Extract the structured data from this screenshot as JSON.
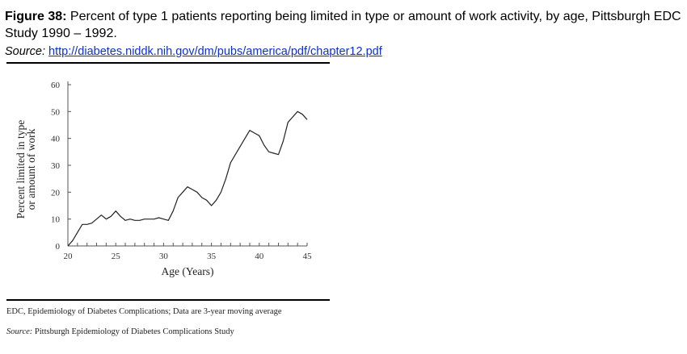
{
  "header": {
    "figure_label": "Figure 38:",
    "title_text": "Percent of type 1 patients reporting being limited in type or amount of work activity, by age, Pittsburgh EDC Study 1990 – 1992.",
    "source_label": "Source:",
    "source_link": "http://diabetes.niddk.nih.gov/dm/pubs/america/pdf/chapter12.pdf"
  },
  "footer": {
    "note": "EDC, Epidemiology of Diabetes Complications; Data are 3-year moving average",
    "source_label": "Source:",
    "source_text": "Pittsburgh Epidemiology of Diabetes Complications Study"
  },
  "colors": {
    "line": "#222222",
    "link": "#0b32c8"
  },
  "chart_data": {
    "type": "line",
    "title": "",
    "xlabel": "Age (Years)",
    "ylabel_line1": "Percent limited in type",
    "ylabel_line2": "or amount of work",
    "xlim": [
      20,
      45
    ],
    "ylim": [
      0,
      60
    ],
    "xticks": [
      20,
      25,
      30,
      35,
      40,
      45
    ],
    "yticks": [
      0,
      10,
      20,
      30,
      40,
      50,
      60
    ],
    "grid": false,
    "x": [
      20,
      20.5,
      21,
      21.5,
      22,
      22.5,
      23,
      23.5,
      24,
      24.5,
      25,
      25.5,
      26,
      26.5,
      27,
      27.5,
      28,
      28.5,
      29,
      29.5,
      30,
      30.5,
      31,
      31.5,
      32,
      32.5,
      33,
      33.5,
      34,
      34.5,
      35,
      35.5,
      36,
      36.5,
      37,
      37.5,
      38,
      38.5,
      39,
      39.5,
      40,
      40.5,
      41,
      41.5,
      42,
      42.5,
      43,
      43.5,
      44,
      44.5,
      45
    ],
    "y": [
      0,
      2,
      5,
      8,
      8,
      8.5,
      10,
      11.5,
      10,
      11,
      13,
      11,
      9.5,
      10,
      9.5,
      9.5,
      10,
      10,
      10,
      10.5,
      10,
      9.5,
      13,
      18,
      20,
      22,
      21,
      20,
      18,
      17,
      15,
      17,
      20,
      25,
      31,
      34,
      37,
      40,
      43,
      42,
      41,
      37.5,
      35,
      34.5,
      34,
      39,
      46,
      48,
      50,
      49,
      47
    ]
  }
}
